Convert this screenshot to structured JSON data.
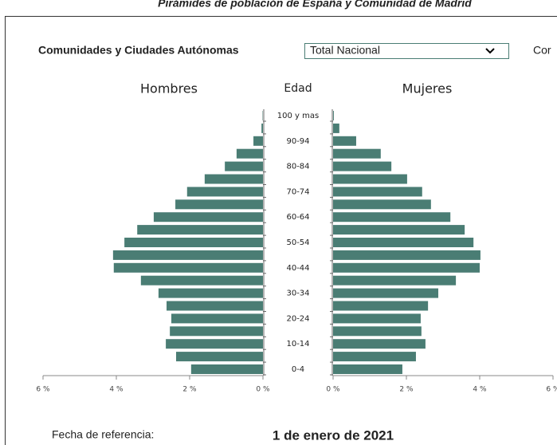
{
  "chart_data": {
    "type": "pyramid",
    "title": "Pirámides de población de España y  Comunidad de Madrid",
    "controls": {
      "region_label": "Comunidades y Ciudades Autónomas",
      "region_selected": "Total Nacional",
      "next_label": "Cor"
    },
    "category_label": "Edad",
    "categories": [
      "0-4",
      null,
      "10-14",
      null,
      "20-24",
      null,
      "30-34",
      null,
      "40-44",
      null,
      "50-54",
      null,
      "60-64",
      null,
      "70-74",
      null,
      "80-84",
      null,
      "90-94",
      null,
      "100 y mas"
    ],
    "series": [
      {
        "name": "Hombres",
        "color": "#4a7d74",
        "values": [
          1.96,
          2.37,
          2.65,
          2.54,
          2.5,
          2.63,
          2.85,
          3.33,
          4.07,
          4.09,
          3.78,
          3.43,
          2.98,
          2.39,
          2.07,
          1.59,
          1.04,
          0.72,
          0.26,
          0.04,
          0.01
        ]
      },
      {
        "name": "Mujeres",
        "color": "#4a7d74",
        "values": [
          1.89,
          2.26,
          2.52,
          2.41,
          2.39,
          2.59,
          2.87,
          3.35,
          4.0,
          4.02,
          3.83,
          3.59,
          3.2,
          2.67,
          2.43,
          2.02,
          1.59,
          1.3,
          0.63,
          0.17,
          0.02
        ]
      }
    ],
    "xlim": [
      0,
      6
    ],
    "xticks": [
      {
        "value": 0,
        "label": "0 %"
      },
      {
        "value": 2,
        "label": "2 %"
      },
      {
        "value": 4,
        "label": "4 %"
      },
      {
        "value": 6,
        "label": "6 %"
      }
    ],
    "footer": {
      "label": "Fecha de referencia:",
      "date": "1 de enero de 2021"
    }
  }
}
